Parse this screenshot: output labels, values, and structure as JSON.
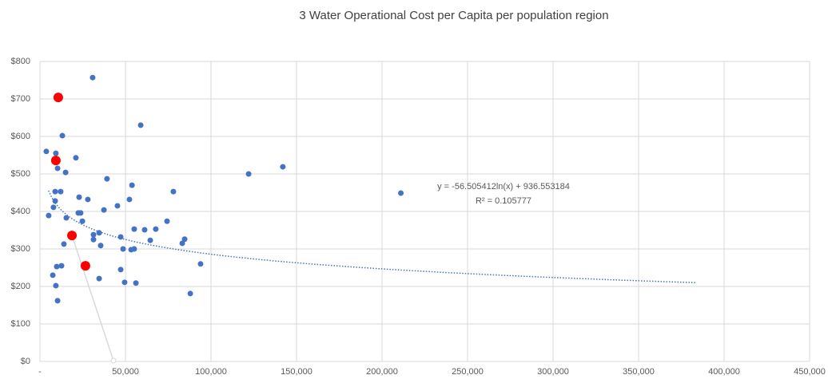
{
  "chart_data": {
    "type": "scatter",
    "title": "3 Water Operational Cost per Capita per population region",
    "xlim": [
      0,
      450000
    ],
    "xticks": [
      {
        "value": 0,
        "label": "-"
      },
      {
        "value": 50000,
        "label": "50,000"
      },
      {
        "value": 100000,
        "label": "100,000"
      },
      {
        "value": 150000,
        "label": "150,000"
      },
      {
        "value": 200000,
        "label": "200,000"
      },
      {
        "value": 250000,
        "label": "250,000"
      },
      {
        "value": 300000,
        "label": "300,000"
      },
      {
        "value": 350000,
        "label": "350,000"
      },
      {
        "value": 400000,
        "label": "400,000"
      },
      {
        "value": 450000,
        "label": "450,000"
      }
    ],
    "ylim": [
      0,
      800
    ],
    "yticks": [
      {
        "value": 0,
        "label": "$0"
      },
      {
        "value": 100,
        "label": "$100"
      },
      {
        "value": 200,
        "label": "$200"
      },
      {
        "value": 300,
        "label": "$300"
      },
      {
        "value": 400,
        "label": "$400"
      },
      {
        "value": 500,
        "label": "$500"
      },
      {
        "value": 600,
        "label": "$600"
      },
      {
        "value": 700,
        "label": "$700"
      },
      {
        "value": 800,
        "label": "$800"
      }
    ],
    "grid": true,
    "series": [
      {
        "color": "#4472c4",
        "x": [
          3700,
          5100,
          7500,
          7900,
          8900,
          8900,
          9300,
          9800,
          9300,
          10300,
          10300,
          12100,
          12600,
          13100,
          14000,
          15000,
          15400,
          21000,
          22900,
          22400,
          23800,
          24800,
          28000,
          30800,
          31300,
          31300,
          34600,
          34600,
          35500,
          37400,
          39200,
          45300,
          47200,
          47200,
          48600,
          49500,
          52300,
          53300,
          53800,
          55100,
          55100,
          56100,
          58900,
          61200,
          64500,
          67700,
          74300,
          78000,
          83200,
          84600,
          87900,
          93900,
          122000,
          142000,
          211000
        ],
        "values": [
          560,
          389,
          230,
          411,
          453,
          428,
          555,
          253,
          202,
          515,
          162,
          453,
          255,
          602,
          313,
          504,
          383,
          543,
          438,
          396,
          396,
          374,
          432,
          757,
          325,
          338,
          343,
          221,
          309,
          404,
          487,
          415,
          332,
          245,
          300,
          211,
          432,
          298,
          470,
          353,
          300,
          209,
          630,
          351,
          323,
          353,
          374,
          453,
          315,
          326,
          181,
          260,
          500,
          519,
          449
        ]
      },
      {
        "color": "#ff0000",
        "x": [
          10700,
          9300,
          18700,
          26600
        ],
        "values": [
          704,
          536,
          336,
          255
        ]
      }
    ],
    "trendline": {
      "equation": "y = -56.505412ln(x) + 936.553184",
      "r_squared": "R² = 0.105777",
      "coefficients": [
        -56.505412,
        936.553184
      ],
      "xlim": [
        5000,
        384000
      ],
      "color": "#4472c4"
    }
  }
}
